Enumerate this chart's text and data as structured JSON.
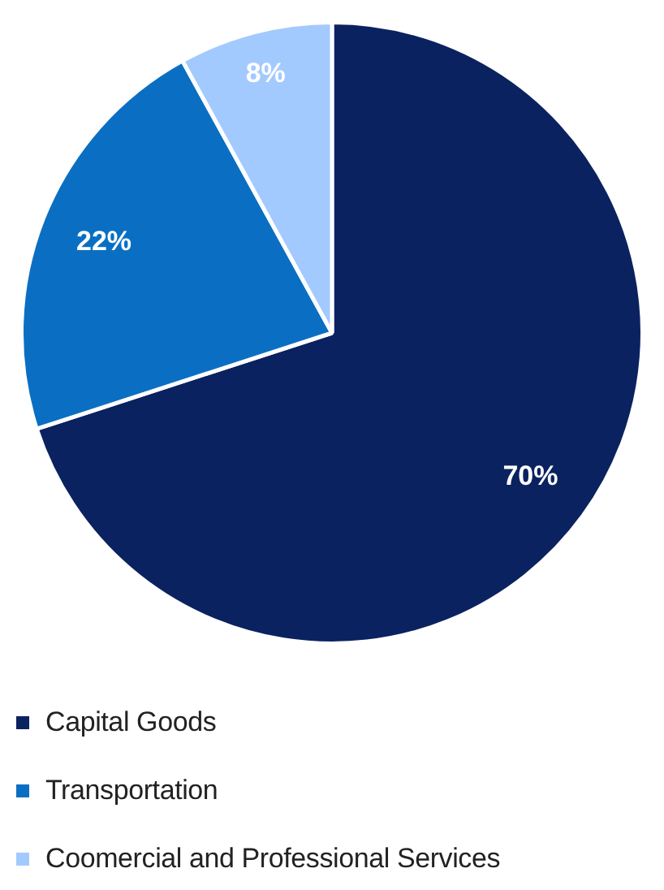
{
  "chart_data": {
    "type": "pie",
    "categories": [
      "Capital Goods",
      "Transportation",
      "Coomercial and Professional Services"
    ],
    "values": [
      70,
      22,
      8
    ],
    "colors": [
      "#0b2260",
      "#0a6fc2",
      "#a3cafe"
    ],
    "value_labels": [
      "70%",
      "22%",
      "8%"
    ],
    "legend": "bottom left"
  }
}
